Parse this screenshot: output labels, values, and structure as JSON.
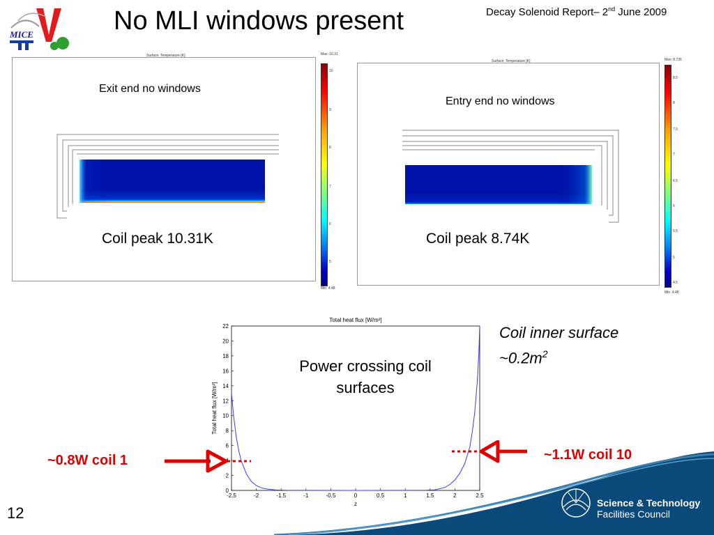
{
  "title": "No MLI windows present",
  "report": {
    "prefix": "Decay Solenoid Report– 2",
    "sup": "nd",
    "suffix": " June 2009"
  },
  "logo": {
    "text": "MICE"
  },
  "left_panel": {
    "header": "Surface: Temperature [K]",
    "label": "Exit end no windows",
    "coil_peak": "Coil peak 10.31K",
    "cbar_max": "Max: 10.31",
    "cbar_min": "Min: 4.48",
    "ticks": [
      "10",
      "9",
      "8",
      "7",
      "6",
      "5"
    ]
  },
  "right_panel": {
    "header": "Surface: Temperature [K]",
    "label": "Entry end no windows",
    "coil_peak": "Coil peak 8.74K",
    "cbar_max": "Max: 8.735",
    "cbar_min": "Min: 4.48",
    "ticks": [
      "8.5",
      "8",
      "7.5",
      "7",
      "6.5",
      "6",
      "5.5",
      "5",
      "4.5"
    ]
  },
  "flux_plot": {
    "inner_label": "Power crossing coil surfaces"
  },
  "annotations": {
    "inner_surface_line1": "Coil inner surface",
    "inner_surface_line2": "~0.2m",
    "inner_surface_sup": "2",
    "coil1": "~0.8W coil 1",
    "coil10": "~1.1W coil 10"
  },
  "slide_number": "12",
  "footer": {
    "line1": "Science & Technology",
    "line2": "Facilities Council"
  },
  "colors": {
    "accent_red": "#e00000",
    "band_blue": "#0a4a7a",
    "flux_line": "#3a3aff"
  },
  "chart_data": {
    "type": "line",
    "title": "Total heat flux [W/m²]",
    "xlabel": "z",
    "ylabel": "Total heat flux [W/m²]",
    "xlim": [
      -2.5,
      2.5
    ],
    "ylim": [
      0,
      22
    ],
    "xticks": [
      "-2.5",
      "-2",
      "-1.5",
      "-1",
      "-0.5",
      "0",
      "0.5",
      "1",
      "1.5",
      "2",
      "2.5"
    ],
    "yticks": [
      "0",
      "2",
      "4",
      "6",
      "8",
      "10",
      "12",
      "14",
      "16",
      "18",
      "20",
      "22"
    ],
    "grid": false,
    "series": [
      {
        "x": [
          -2.5,
          -2.45,
          -2.4,
          -2.35,
          -2.3,
          -2.2,
          -2.1,
          -2.0,
          -1.9,
          -1.8,
          -1.6,
          -1.4,
          -1.0,
          0.0,
          1.0,
          1.4,
          1.6,
          1.8,
          1.9,
          2.0,
          2.1,
          2.2,
          2.3,
          2.35,
          2.4,
          2.45,
          2.48,
          2.5
        ],
        "y": [
          13,
          9.5,
          7,
          5.2,
          3.9,
          2.2,
          1.2,
          0.65,
          0.35,
          0.2,
          0.06,
          0.02,
          0.01,
          0.0,
          0.01,
          0.02,
          0.08,
          0.4,
          0.8,
          1.4,
          2.3,
          3.6,
          5.8,
          7.8,
          10.5,
          14.5,
          18,
          22
        ]
      }
    ]
  }
}
